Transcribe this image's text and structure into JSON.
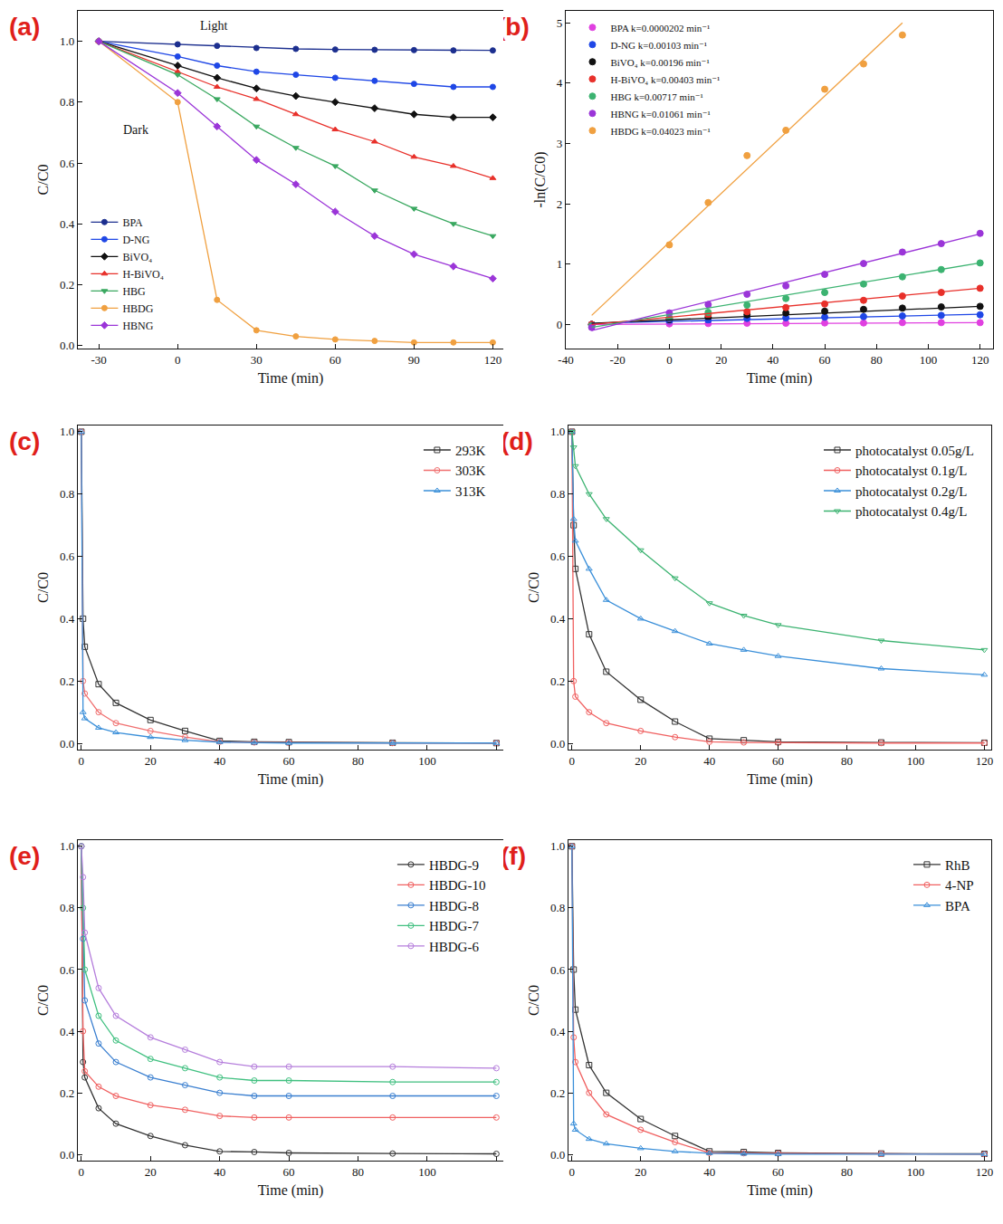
{
  "chart_data": [
    {
      "type": "line",
      "title": "(a)",
      "xlabel": "Time (min)",
      "ylabel": "C/C0",
      "x": [
        -30,
        0,
        15,
        30,
        45,
        60,
        75,
        90,
        105,
        120
      ],
      "xlim": [
        -38,
        124
      ],
      "ylim": [
        -0.01,
        1.1
      ],
      "xticks": [
        -30,
        0,
        30,
        60,
        90,
        120
      ],
      "yticks": [
        {
          "value": 0,
          "label": "0.0"
        },
        {
          "value": 0.2,
          "label": "0.2"
        },
        {
          "value": 0.4,
          "label": "0.4"
        },
        {
          "value": 0.6,
          "label": "0.6"
        },
        {
          "value": 0.8,
          "label": "0.8"
        },
        {
          "value": 1.0,
          "label": "1.0"
        }
      ],
      "grid": false,
      "legend": "lower left",
      "annotations": [
        {
          "text": "Light",
          "x": 8,
          "y": 1.05
        },
        {
          "text": "Dark",
          "x": -16,
          "y": 0.71
        }
      ],
      "series": [
        {
          "name": "BPA",
          "color": "#1c2f8f",
          "marker": "circle",
          "values": [
            1.0,
            0.99,
            0.985,
            0.978,
            0.975,
            0.973,
            0.972,
            0.971,
            0.97,
            0.97
          ]
        },
        {
          "name": "D-NG",
          "color": "#1f47e6",
          "marker": "circle",
          "values": [
            1.0,
            0.95,
            0.92,
            0.9,
            0.89,
            0.88,
            0.87,
            0.86,
            0.85,
            0.85
          ]
        },
        {
          "name": "BiVO₄",
          "color": "#111111",
          "marker": "diamond",
          "values": [
            1.0,
            0.92,
            0.88,
            0.845,
            0.82,
            0.8,
            0.78,
            0.76,
            0.75,
            0.75
          ]
        },
        {
          "name": "H-BiVO₄",
          "color": "#e8302a",
          "marker": "triangle-up",
          "values": [
            1.0,
            0.9,
            0.85,
            0.81,
            0.76,
            0.71,
            0.67,
            0.62,
            0.59,
            0.55
          ]
        },
        {
          "name": "HBG",
          "color": "#3aa860",
          "marker": "triangle-down",
          "values": [
            1.0,
            0.89,
            0.81,
            0.72,
            0.65,
            0.59,
            0.51,
            0.45,
            0.4,
            0.36
          ]
        },
        {
          "name": "HBDG",
          "color": "#f0a040",
          "marker": "circle",
          "values": [
            1.0,
            0.8,
            0.15,
            0.05,
            0.03,
            0.02,
            0.015,
            0.01,
            0.01,
            0.01
          ]
        },
        {
          "name": "HBNG",
          "color": "#9b35d8",
          "marker": "diamond",
          "values": [
            1.0,
            0.83,
            0.72,
            0.61,
            0.53,
            0.44,
            0.36,
            0.3,
            0.26,
            0.22
          ]
        }
      ]
    },
    {
      "type": "scatter",
      "title": "(b)",
      "xlabel": "Time (min)",
      "ylabel": "-ln(C/C0)",
      "x": [
        -30,
        0,
        15,
        30,
        45,
        60,
        75,
        90,
        105,
        120
      ],
      "xlim": [
        -40,
        125
      ],
      "ylim": [
        -0.4,
        5.2
      ],
      "xticks": [
        -40,
        -20,
        0,
        20,
        40,
        60,
        80,
        100,
        120
      ],
      "yticks": [
        0,
        1,
        2,
        3,
        4,
        5
      ],
      "grid": false,
      "legend": "upper left",
      "series": [
        {
          "name": "BPA k=0.0000202 min⁻¹",
          "color": "#e040e0",
          "marker": "circle",
          "values": [
            0,
            0.01,
            0.015,
            0.02,
            0.02,
            0.025,
            0.025,
            0.03,
            0.03,
            0.03
          ],
          "fit_x": [
            -30,
            120
          ],
          "fit_values": [
            0,
            0.03
          ]
        },
        {
          "name": "D-NG k=0.00103 min⁻¹",
          "color": "#1f47e6",
          "marker": "circle",
          "values": [
            0,
            0.05,
            0.07,
            0.1,
            0.11,
            0.12,
            0.13,
            0.14,
            0.15,
            0.16
          ],
          "fit_x": [
            -30,
            120
          ],
          "fit_values": [
            0.02,
            0.17
          ]
        },
        {
          "name": "BiVO₄ k=0.00196 min⁻¹",
          "color": "#111111",
          "marker": "circle",
          "values": [
            0,
            0.08,
            0.12,
            0.16,
            0.19,
            0.22,
            0.25,
            0.27,
            0.29,
            0.3
          ],
          "fit_x": [
            -30,
            120
          ],
          "fit_values": [
            0.02,
            0.3
          ]
        },
        {
          "name": "H-BiVO₄ k=0.00403 min⁻¹",
          "color": "#e8302a",
          "marker": "circle",
          "values": [
            0,
            0.1,
            0.16,
            0.21,
            0.28,
            0.34,
            0.4,
            0.47,
            0.53,
            0.6
          ],
          "fit_x": [
            -30,
            120
          ],
          "fit_values": [
            0,
            0.6
          ]
        },
        {
          "name": "HBG k=0.00717 min⁻¹",
          "color": "#3cb371",
          "marker": "circle",
          "values": [
            -0.02,
            0.11,
            0.2,
            0.32,
            0.43,
            0.53,
            0.67,
            0.79,
            0.91,
            1.02
          ],
          "fit_x": [
            -30,
            120
          ],
          "fit_values": [
            -0.05,
            1.02
          ]
        },
        {
          "name": "HBNG k=0.01061 min⁻¹",
          "color": "#9b35d8",
          "marker": "circle",
          "values": [
            -0.05,
            0.19,
            0.33,
            0.5,
            0.64,
            0.83,
            1.01,
            1.2,
            1.34,
            1.51
          ],
          "fit_x": [
            -30,
            120
          ],
          "fit_values": [
            -0.1,
            1.5
          ]
        },
        {
          "name": "HBDG k=0.04023 min⁻¹",
          "color": "#f0a040",
          "marker": "circle",
          "values": [
            null,
            1.32,
            2.02,
            2.8,
            3.22,
            3.9,
            4.32,
            4.8,
            null,
            null
          ],
          "fit_x": [
            -30,
            90
          ],
          "fit_values": [
            0.15,
            5.0
          ]
        }
      ]
    },
    {
      "type": "line",
      "title": "(c)",
      "xlabel": "Time (min)",
      "ylabel": "C/C0",
      "x": [
        0,
        0.5,
        1,
        5,
        10,
        20,
        30,
        40,
        50,
        60,
        90,
        120
      ],
      "xlim": [
        -1,
        122
      ],
      "ylim": [
        -0.02,
        1.02
      ],
      "xticks": [
        0,
        20,
        40,
        60,
        80,
        100,
        120
      ],
      "yticks": [
        {
          "value": 0,
          "label": "0.0"
        },
        {
          "value": 0.2,
          "label": "0.2"
        },
        {
          "value": 0.4,
          "label": "0.4"
        },
        {
          "value": 0.6,
          "label": "0.6"
        },
        {
          "value": 0.8,
          "label": "0.8"
        },
        {
          "value": 1.0,
          "label": "1.0"
        }
      ],
      "grid": false,
      "legend": "upper right",
      "series": [
        {
          "name": "293K",
          "color": "#333333",
          "marker": "square-open",
          "values": [
            1.0,
            0.4,
            0.31,
            0.19,
            0.13,
            0.075,
            0.04,
            0.008,
            0.005,
            0.004,
            0.002,
            0.001
          ]
        },
        {
          "name": "303K",
          "color": "#f07070",
          "marker": "circle-open",
          "values": [
            1.0,
            0.2,
            0.16,
            0.1,
            0.065,
            0.04,
            0.02,
            0.005,
            0.003,
            0.002,
            0.001,
            0.001
          ]
        },
        {
          "name": "313K",
          "color": "#3a8fd9",
          "marker": "triangle-up-open",
          "values": [
            1.0,
            0.1,
            0.08,
            0.05,
            0.035,
            0.02,
            0.01,
            0.004,
            0.002,
            0.001,
            0.001,
            0.001
          ]
        }
      ]
    },
    {
      "type": "line",
      "title": "(d)",
      "xlabel": "Time (min)",
      "ylabel": "C/C0",
      "x": [
        0,
        0.5,
        1,
        5,
        10,
        20,
        30,
        40,
        50,
        60,
        90,
        120
      ],
      "xlim": [
        -1,
        122
      ],
      "ylim": [
        -0.02,
        1.02
      ],
      "xticks": [
        0,
        20,
        40,
        60,
        80,
        100,
        120
      ],
      "yticks": [
        {
          "value": 0,
          "label": "0.0"
        },
        {
          "value": 0.2,
          "label": "0.2"
        },
        {
          "value": 0.4,
          "label": "0.4"
        },
        {
          "value": 0.6,
          "label": "0.6"
        },
        {
          "value": 0.8,
          "label": "0.8"
        },
        {
          "value": 1.0,
          "label": "1.0"
        }
      ],
      "grid": false,
      "legend": "upper right",
      "series": [
        {
          "name": "photocatalyst 0.05g/L",
          "color": "#333333",
          "marker": "square-open",
          "values": [
            1.0,
            0.7,
            0.56,
            0.35,
            0.23,
            0.14,
            0.07,
            0.015,
            0.01,
            0.005,
            0.003,
            0.002
          ]
        },
        {
          "name": "photocatalyst 0.1g/L",
          "color": "#f06060",
          "marker": "circle-open",
          "values": [
            1.0,
            0.2,
            0.15,
            0.1,
            0.065,
            0.04,
            0.02,
            0.005,
            0.003,
            0.002,
            0.001,
            0.001
          ]
        },
        {
          "name": "photocatalyst 0.2g/L",
          "color": "#3a8fd9",
          "marker": "triangle-up-open",
          "values": [
            1.0,
            0.72,
            0.65,
            0.56,
            0.46,
            0.4,
            0.36,
            0.32,
            0.3,
            0.28,
            0.24,
            0.22
          ]
        },
        {
          "name": "photocatalyst 0.4g/L",
          "color": "#3cb371",
          "marker": "triangle-down-open",
          "values": [
            1.0,
            0.95,
            0.89,
            0.8,
            0.72,
            0.62,
            0.53,
            0.45,
            0.41,
            0.38,
            0.33,
            0.3
          ]
        }
      ]
    },
    {
      "type": "line",
      "title": "(e)",
      "xlabel": "Time (min)",
      "ylabel": "C/C0",
      "x": [
        0,
        0.5,
        1,
        5,
        10,
        20,
        30,
        40,
        50,
        60,
        90,
        120
      ],
      "xlim": [
        -1,
        122
      ],
      "ylim": [
        -0.02,
        1.02
      ],
      "xticks": [
        0,
        20,
        40,
        60,
        80,
        100,
        120
      ],
      "yticks": [
        {
          "value": 0,
          "label": "0.0"
        },
        {
          "value": 0.2,
          "label": "0.2"
        },
        {
          "value": 0.4,
          "label": "0.4"
        },
        {
          "value": 0.6,
          "label": "0.6"
        },
        {
          "value": 0.8,
          "label": "0.8"
        },
        {
          "value": 1.0,
          "label": "1.0"
        }
      ],
      "grid": false,
      "legend": "upper right",
      "series": [
        {
          "name": "HBDG-9",
          "color": "#333333",
          "marker": "circle-open",
          "values": [
            1.0,
            0.3,
            0.25,
            0.15,
            0.1,
            0.06,
            0.03,
            0.01,
            0.008,
            0.005,
            0.003,
            0.002
          ]
        },
        {
          "name": "HBDG-10",
          "color": "#f06060",
          "marker": "circle-open",
          "values": [
            1.0,
            0.4,
            0.27,
            0.22,
            0.19,
            0.16,
            0.145,
            0.125,
            0.12,
            0.12,
            0.12,
            0.12
          ]
        },
        {
          "name": "HBDG-8",
          "color": "#3a7fd0",
          "marker": "circle-open",
          "values": [
            1.0,
            0.7,
            0.5,
            0.36,
            0.3,
            0.25,
            0.225,
            0.2,
            0.19,
            0.19,
            0.19,
            0.19
          ]
        },
        {
          "name": "HBDG-7",
          "color": "#40c080",
          "marker": "circle-open",
          "values": [
            1.0,
            0.8,
            0.6,
            0.45,
            0.37,
            0.31,
            0.28,
            0.25,
            0.24,
            0.24,
            0.235,
            0.235
          ]
        },
        {
          "name": "HBDG-6",
          "color": "#b57edc",
          "marker": "circle-open",
          "values": [
            1.0,
            0.9,
            0.72,
            0.54,
            0.45,
            0.38,
            0.34,
            0.3,
            0.285,
            0.285,
            0.285,
            0.28
          ]
        }
      ]
    },
    {
      "type": "line",
      "title": "(f)",
      "xlabel": "Time (min)",
      "ylabel": "C/C0",
      "x": [
        0,
        0.5,
        1,
        5,
        10,
        20,
        30,
        40,
        50,
        60,
        90,
        120
      ],
      "xlim": [
        -1,
        122
      ],
      "ylim": [
        -0.02,
        1.02
      ],
      "xticks": [
        0,
        20,
        40,
        60,
        80,
        100,
        120
      ],
      "yticks": [
        {
          "value": 0,
          "label": "0.0"
        },
        {
          "value": 0.2,
          "label": "0.2"
        },
        {
          "value": 0.4,
          "label": "0.4"
        },
        {
          "value": 0.6,
          "label": "0.6"
        },
        {
          "value": 0.8,
          "label": "0.8"
        },
        {
          "value": 1.0,
          "label": "1.0"
        }
      ],
      "grid": false,
      "legend": "upper right",
      "series": [
        {
          "name": "RhB",
          "color": "#333333",
          "marker": "square-open",
          "values": [
            1.0,
            0.6,
            0.47,
            0.29,
            0.2,
            0.115,
            0.06,
            0.01,
            0.008,
            0.005,
            0.003,
            0.002
          ]
        },
        {
          "name": "4-NP",
          "color": "#f06060",
          "marker": "circle-open",
          "values": [
            1.0,
            0.38,
            0.3,
            0.2,
            0.13,
            0.08,
            0.04,
            0.005,
            0.004,
            0.003,
            0.002,
            0.001
          ]
        },
        {
          "name": "BPA",
          "color": "#3a8fd9",
          "marker": "triangle-up-open",
          "values": [
            1.0,
            0.1,
            0.08,
            0.05,
            0.035,
            0.02,
            0.01,
            0.004,
            0.002,
            0.001,
            0.001,
            0.001
          ]
        }
      ]
    }
  ]
}
